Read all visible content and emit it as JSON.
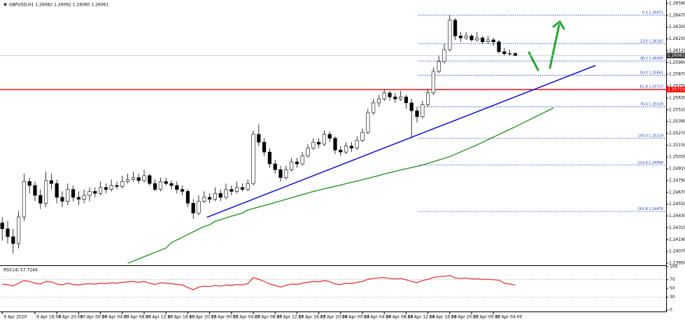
{
  "chart_data": {
    "type": "candlestick",
    "title": "GBPUSD,H1  1.26082 1.26092 1.26060 1.26061",
    "categories": [
      "9 Apr 2020",
      null,
      null,
      null,
      null,
      null,
      "9 Apr 16:00",
      null,
      null,
      null,
      "9 Apr 20:00",
      null,
      null,
      null,
      "10 Apr 00:00",
      null,
      null,
      null,
      "10 Apr 04:00",
      null,
      null,
      null,
      "10 Apr 08:00",
      null,
      null,
      null,
      "10 Apr 12:00",
      null,
      null,
      null,
      "10 Apr 16:00",
      null,
      null,
      null,
      "10 Apr 20:00",
      null,
      null,
      null,
      "13 Apr 00:00",
      null,
      null,
      null,
      "13 Apr 04:00",
      null,
      null,
      null,
      "13 Apr 08:00",
      null,
      null,
      null,
      "13 Apr 12:00",
      null,
      null,
      null,
      "13 Apr 16:00",
      null,
      null,
      null,
      "13 Apr 20:00",
      null,
      null,
      null,
      "14 Apr 00:00",
      null,
      null,
      null,
      "14 Apr 04:00",
      null,
      null,
      null,
      "14 Apr 08:00",
      null,
      null,
      null,
      "14 Apr 12:00",
      null,
      null,
      null,
      "14 Apr 16:00",
      null,
      null,
      null,
      "14 Apr 20:00",
      null,
      null,
      null,
      "15 Apr 00:00",
      null,
      null,
      null,
      "15 Apr 04:00",
      null,
      null,
      null,
      null,
      null,
      null,
      null,
      null,
      null,
      null,
      null,
      null,
      null,
      null,
      null,
      null,
      null,
      null,
      null,
      null,
      null,
      null,
      null,
      null,
      null,
      null,
      null,
      null,
      null,
      null,
      null
    ],
    "candles": [
      [
        1.2436,
        1.2442,
        1.2418,
        1.243
      ],
      [
        1.243,
        1.2438,
        1.2415,
        1.2422
      ],
      [
        1.2422,
        1.243,
        1.2405,
        1.2415
      ],
      [
        1.2415,
        1.2448,
        1.241,
        1.2442
      ],
      [
        1.2442,
        1.2486,
        1.2438,
        1.2478
      ],
      [
        1.2478,
        1.2482,
        1.2466,
        1.2474
      ],
      [
        1.2474,
        1.2478,
        1.2458,
        1.2464
      ],
      [
        1.2464,
        1.247,
        1.245,
        1.2456
      ],
      [
        1.2456,
        1.2488,
        1.2452,
        1.2479
      ],
      [
        1.2479,
        1.2486,
        1.247,
        1.2476
      ],
      [
        1.2476,
        1.248,
        1.2456,
        1.2462
      ],
      [
        1.2462,
        1.2468,
        1.2452,
        1.2458
      ],
      [
        1.2458,
        1.2476,
        1.2454,
        1.247
      ],
      [
        1.247,
        1.2474,
        1.2458,
        1.2462
      ],
      [
        1.2462,
        1.2468,
        1.2454,
        1.246
      ],
      [
        1.246,
        1.247,
        1.2456,
        1.2464
      ],
      [
        1.2464,
        1.2472,
        1.2458,
        1.2468
      ],
      [
        1.2468,
        1.2472,
        1.2462,
        1.2466
      ],
      [
        1.2466,
        1.2478,
        1.2464,
        1.2472
      ],
      [
        1.2472,
        1.2476,
        1.2466,
        1.247
      ],
      [
        1.247,
        1.248,
        1.2468,
        1.2474
      ],
      [
        1.2474,
        1.2478,
        1.247,
        1.2473
      ],
      [
        1.2473,
        1.2484,
        1.2471,
        1.2478
      ],
      [
        1.2478,
        1.2486,
        1.2476,
        1.248
      ],
      [
        1.248,
        1.2488,
        1.2478,
        1.2482
      ],
      [
        1.2482,
        1.2486,
        1.2476,
        1.2479
      ],
      [
        1.2479,
        1.249,
        1.2477,
        1.2484
      ],
      [
        1.2484,
        1.2486,
        1.2474,
        1.2476
      ],
      [
        1.2476,
        1.248,
        1.2468,
        1.247
      ],
      [
        1.247,
        1.2482,
        1.2468,
        1.2478
      ],
      [
        1.2478,
        1.2482,
        1.2474,
        1.2476
      ],
      [
        1.2476,
        1.2479,
        1.247,
        1.2474
      ],
      [
        1.2474,
        1.2478,
        1.2466,
        1.247
      ],
      [
        1.247,
        1.2474,
        1.2464,
        1.2468
      ],
      [
        1.2468,
        1.247,
        1.2452,
        1.2456
      ],
      [
        1.2456,
        1.246,
        1.244,
        1.2446
      ],
      [
        1.2446,
        1.2464,
        1.2444,
        1.2458
      ],
      [
        1.2458,
        1.2468,
        1.2456,
        1.2462
      ],
      [
        1.2462,
        1.2466,
        1.2456,
        1.246
      ],
      [
        1.246,
        1.2472,
        1.2458,
        1.2466
      ],
      [
        1.2466,
        1.247,
        1.2458,
        1.2462
      ],
      [
        1.2462,
        1.2476,
        1.246,
        1.247
      ],
      [
        1.247,
        1.2474,
        1.2464,
        1.2468
      ],
      [
        1.2468,
        1.2478,
        1.2466,
        1.2472
      ],
      [
        1.2472,
        1.2476,
        1.2468,
        1.247
      ],
      [
        1.247,
        1.248,
        1.2468,
        1.2476
      ],
      [
        1.2476,
        1.253,
        1.2474,
        1.2526
      ],
      [
        1.2526,
        1.2536,
        1.2514,
        1.2518
      ],
      [
        1.2518,
        1.2522,
        1.2504,
        1.2508
      ],
      [
        1.2508,
        1.2512,
        1.2492,
        1.2496
      ],
      [
        1.2496,
        1.25,
        1.2486,
        1.249
      ],
      [
        1.249,
        1.2494,
        1.2478,
        1.2482
      ],
      [
        1.2482,
        1.2494,
        1.248,
        1.249
      ],
      [
        1.249,
        1.2502,
        1.2488,
        1.2498
      ],
      [
        1.2498,
        1.2502,
        1.2492,
        1.2496
      ],
      [
        1.2496,
        1.2508,
        1.2494,
        1.2504
      ],
      [
        1.2504,
        1.2516,
        1.2502,
        1.2512
      ],
      [
        1.2512,
        1.2522,
        1.251,
        1.2518
      ],
      [
        1.2518,
        1.2522,
        1.2512,
        1.2516
      ],
      [
        1.2516,
        1.253,
        1.2514,
        1.2526
      ],
      [
        1.2526,
        1.2529,
        1.2518,
        1.2522
      ],
      [
        1.2522,
        1.2524,
        1.2506,
        1.251
      ],
      [
        1.251,
        1.2514,
        1.2504,
        1.2508
      ],
      [
        1.2508,
        1.2518,
        1.2506,
        1.2514
      ],
      [
        1.2514,
        1.2518,
        1.2508,
        1.2512
      ],
      [
        1.2512,
        1.2524,
        1.251,
        1.252
      ],
      [
        1.252,
        1.2532,
        1.2518,
        1.2528
      ],
      [
        1.2528,
        1.2552,
        1.2526,
        1.2548
      ],
      [
        1.2548,
        1.2562,
        1.2546,
        1.2558
      ],
      [
        1.2558,
        1.2566,
        1.2554,
        1.2562
      ],
      [
        1.2562,
        1.2572,
        1.256,
        1.2568
      ],
      [
        1.2568,
        1.257,
        1.256,
        1.2564
      ],
      [
        1.2564,
        1.2568,
        1.2558,
        1.2562
      ],
      [
        1.2562,
        1.257,
        1.256,
        1.2564
      ],
      [
        1.2564,
        1.2566,
        1.2552,
        1.2558
      ],
      [
        1.2558,
        1.2562,
        1.25219,
        1.255
      ],
      [
        1.255,
        1.2554,
        1.2538,
        1.2544
      ],
      [
        1.2544,
        1.256,
        1.2542,
        1.2556
      ],
      [
        1.2556,
        1.2572,
        1.2554,
        1.2568
      ],
      [
        1.2568,
        1.2594,
        1.2566,
        1.259
      ],
      [
        1.259,
        1.2606,
        1.2588,
        1.26
      ],
      [
        1.26,
        1.2618,
        1.2598,
        1.2612
      ],
      [
        1.2612,
        1.26471,
        1.261,
        1.2642
      ],
      [
        1.2642,
        1.2644,
        1.2622,
        1.2626
      ],
      [
        1.2626,
        1.263,
        1.262,
        1.2624
      ],
      [
        1.2624,
        1.263,
        1.2622,
        1.2626
      ],
      [
        1.2626,
        1.2628,
        1.262,
        1.2622
      ],
      [
        1.2622,
        1.263,
        1.262,
        1.2624
      ],
      [
        1.2624,
        1.2626,
        1.2618,
        1.262
      ],
      [
        1.262,
        1.2626,
        1.2618,
        1.2622
      ],
      [
        1.2622,
        1.2624,
        1.2616,
        1.262
      ],
      [
        1.262,
        1.2622,
        1.2608,
        1.261
      ],
      [
        1.261,
        1.2614,
        1.2606,
        1.2608
      ],
      [
        1.2608,
        1.2612,
        1.2606,
        1.26082
      ],
      [
        1.26082,
        1.26092,
        1.2606,
        1.26061
      ],
      null,
      null,
      null,
      null,
      null,
      null,
      null,
      null,
      null,
      null,
      null,
      null,
      null,
      null,
      null,
      null,
      null,
      null,
      null,
      null,
      null,
      null,
      null,
      null,
      null,
      null,
      null
    ],
    "ma": {
      "color": "#1a8f1a",
      "values": [
        null,
        null,
        null,
        null,
        null,
        null,
        null,
        null,
        null,
        null,
        null,
        null,
        null,
        null,
        null,
        null,
        null,
        null,
        null,
        null,
        null,
        null,
        null,
        1.23949,
        1.23971,
        1.23994,
        1.24016,
        1.24038,
        1.2406,
        1.24083,
        1.24105,
        1.24159,
        1.24187,
        1.24214,
        1.24242,
        1.24269,
        1.24297,
        1.24324,
        1.24341,
        1.24376,
        1.24393,
        1.2441,
        1.24428,
        1.24445,
        1.2446,
        1.2449,
        1.24506,
        1.24521,
        1.24536,
        1.24551,
        1.24567,
        1.24583,
        1.24599,
        1.24615,
        1.24631,
        1.24647,
        1.24663,
        1.24679,
        1.24692,
        1.24706,
        1.24719,
        1.24732,
        1.24745,
        1.24759,
        1.24772,
        1.24785,
        1.24799,
        1.24813,
        1.24827,
        1.24841,
        1.24856,
        1.2487,
        1.24884,
        1.24897,
        1.2491,
        1.24922,
        1.24935,
        1.24948,
        1.24965,
        1.24982,
        1.24999,
        1.25016,
        1.25033,
        1.25057,
        1.25081,
        1.25105,
        1.25129,
        1.25153,
        1.25179,
        1.25206,
        1.25232,
        1.25258,
        1.25285,
        1.25311,
        1.25337,
        1.25364,
        1.25392,
        1.25419,
        1.25446,
        1.25474,
        1.25501,
        1.25528,
        null,
        null,
        null,
        null,
        null,
        null,
        null,
        null,
        null,
        null,
        null,
        null,
        null,
        null,
        null,
        null,
        null,
        null,
        null,
        null
      ]
    },
    "ylim": [
      1.23936,
      1.26611
    ],
    "yticks": [
      {
        "value": 1.2659,
        "label": "1.26590"
      },
      {
        "value": 1.2647,
        "label": "1.26470"
      },
      {
        "value": 1.2635,
        "label": "1.26350"
      },
      {
        "value": 1.2623,
        "label": "1.26230"
      },
      {
        "value": 1.2611,
        "label": "1.26110"
      },
      {
        "value": 1.2599,
        "label": "1.25990"
      },
      {
        "value": 1.2587,
        "label": "1.25870"
      },
      {
        "value": 1.2575,
        "label": "1.25750"
      },
      {
        "value": 1.2563,
        "label": "1.25630"
      },
      {
        "value": 1.2551,
        "label": "1.25510"
      },
      {
        "value": 1.2539,
        "label": "1.25390"
      },
      {
        "value": 1.2527,
        "label": "1.25270"
      },
      {
        "value": 1.2515,
        "label": "1.25150"
      },
      {
        "value": 1.2503,
        "label": "1.25030"
      },
      {
        "value": 1.2491,
        "label": "1.24910"
      },
      {
        "value": 1.2479,
        "label": "1.24790"
      },
      {
        "value": 1.2467,
        "label": "1.24670"
      },
      {
        "value": 1.2455,
        "label": "1.24550"
      },
      {
        "value": 1.2443,
        "label": "1.24430"
      },
      {
        "value": 1.2431,
        "label": "1.24310"
      },
      {
        "value": 1.2419,
        "label": "1.24190"
      },
      {
        "value": 1.2407,
        "label": "1.24070"
      },
      {
        "value": 1.2395,
        "label": "1.23950"
      }
    ],
    "hline": {
      "value": 1.25715,
      "color": "#ff0000"
    },
    "fib": [
      {
        "value": 1.26471,
        "label": "0.0 1.26471"
      },
      {
        "value": 1.26182,
        "label": "23.6 1.26182"
      },
      {
        "value": 1.26005,
        "label": "38.2 1.26005"
      },
      {
        "value": 1.25861,
        "label": "50.0 1.25861"
      },
      {
        "value": 1.25717,
        "label": "61.8 1.25717"
      },
      {
        "value": 1.25539,
        "label": "76.4 1.25539"
      },
      {
        "value": 1.25219,
        "label": "100.0 1.25219"
      },
      {
        "value": 1.24948,
        "label": "123.6 1.24948"
      },
      {
        "value": 1.24476,
        "label": "161.8 1.24476"
      }
    ],
    "trendline": {
      "start": [
        37.5,
        1.24417
      ],
      "end": [
        108.7,
        1.2596
      ],
      "color": "#1010d0"
    },
    "rsi": {
      "title": "RSI(14) 57.7246",
      "color": "#e03a3a",
      "ylim": [
        0,
        100
      ],
      "yticks": [
        100,
        70,
        50,
        30,
        0
      ],
      "values": [
        60,
        58,
        56,
        62,
        68,
        66,
        62,
        60,
        66,
        65,
        60,
        58,
        62,
        59,
        58,
        60,
        61,
        60,
        62,
        61,
        63,
        62,
        64,
        65,
        66,
        64,
        66,
        62,
        59,
        63,
        62,
        61,
        59,
        58,
        52,
        47,
        53,
        55,
        54,
        57,
        55,
        58,
        57,
        59,
        58,
        61,
        75,
        71,
        66,
        60,
        57,
        53,
        57,
        60,
        59,
        62,
        64,
        66,
        65,
        68,
        66,
        60,
        59,
        62,
        61,
        64,
        66,
        71,
        73,
        74,
        75,
        73,
        72,
        73,
        70,
        66,
        63,
        68,
        71,
        75,
        77,
        78,
        80,
        74,
        73,
        74,
        72,
        72,
        71,
        71,
        70,
        69,
        62,
        60,
        57.7246,
        null,
        null,
        null,
        null,
        null,
        null,
        null,
        null,
        null,
        null,
        null,
        null,
        null,
        null,
        null,
        null,
        null,
        null,
        null,
        null,
        null,
        null,
        null,
        null,
        null,
        null,
        null
      ]
    }
  }
}
